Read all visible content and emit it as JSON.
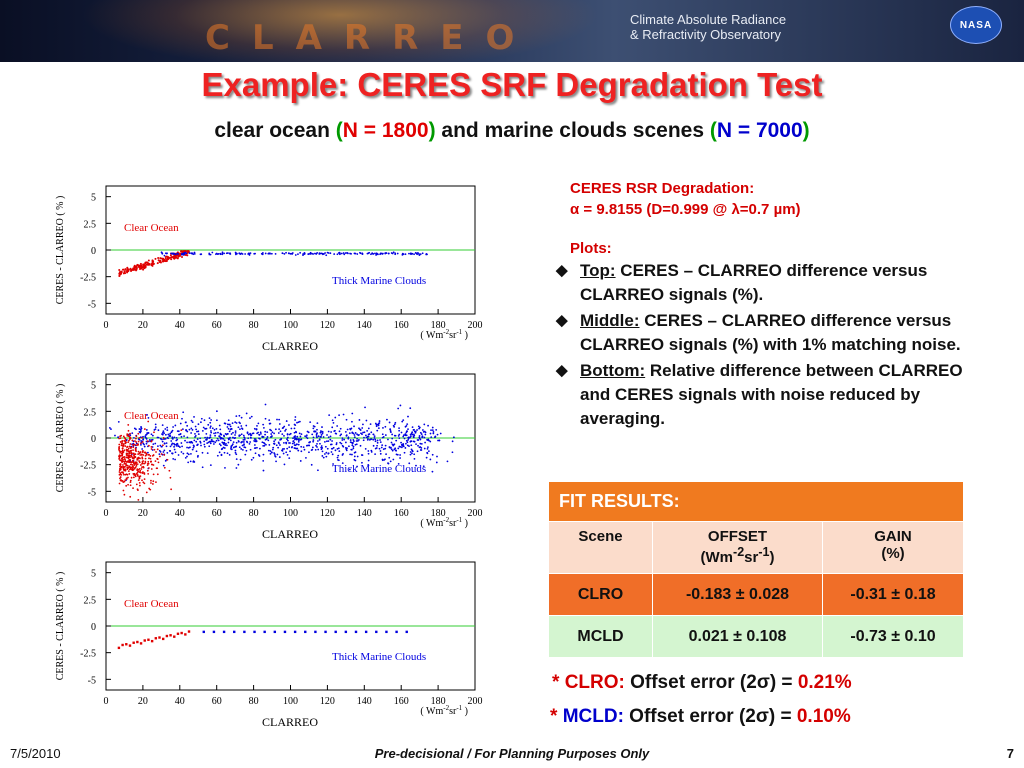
{
  "banner": {
    "logo_text": "CLARREO",
    "observatory_line1": "Climate Absolute Radiance",
    "observatory_line2": "& Refractivity Observatory",
    "agency_logo": "NASA"
  },
  "slide": {
    "title": "Example: CERES SRF Degradation Test",
    "subtitle": {
      "part1": "clear ocean ",
      "paren_open1": "(",
      "n1_label": "N = 1800",
      "paren_close1": ")",
      "part2": " and marine clouds scenes ",
      "paren_open2": "(",
      "n2_label": "N = 7000",
      "paren_close2": ")"
    }
  },
  "info": {
    "rsr_title": "CERES RSR Degradation:",
    "rsr_value": "α = 9.8155 (D=0.999 @ λ=0.7 µm)",
    "plots_label": "Plots:",
    "bullets": [
      {
        "keyword": "Top:",
        "text": " CERES – CLARREO difference versus CLARREO signals (%)."
      },
      {
        "keyword": "Middle:",
        "text": " CERES – CLARREO difference versus CLARREO signals (%) with 1% matching noise."
      },
      {
        "keyword": "Bottom:",
        "text": " Relative difference between CLARREO and CERES signals with noise reduced by averaging."
      }
    ],
    "bullet_icon": "diamond-icon"
  },
  "fit": {
    "header": "FIT RESULTS:",
    "columns": [
      "Scene",
      "OFFSET",
      "GAIN"
    ],
    "offset_unit_pre": "(Wm",
    "offset_unit_sup1": "-2",
    "offset_unit_mid": "sr",
    "offset_unit_sup2": "-1",
    "offset_unit_post": ")",
    "gain_unit": "(%)",
    "rows": [
      {
        "scene": "CLRO",
        "offset": "-0.183 ± 0.028",
        "gain": "-0.31 ± 0.18"
      },
      {
        "scene": "MCLD",
        "offset": "0.021 ± 0.108",
        "gain": "-0.73 ± 0.10"
      }
    ]
  },
  "errors": [
    {
      "star": "*",
      "scene": "CLRO:",
      "text": " Offset error (2σ) = ",
      "value": "0.21%"
    },
    {
      "star": "*",
      "scene": "MCLD:",
      "text": " Offset error (2σ) = ",
      "value": "0.10%"
    }
  ],
  "plots": {
    "ylabel": "CERES - CLARREO ( % )",
    "xlabel": "CLARREO",
    "unit_pre": "( Wm",
    "unit_sup1": "-2",
    "unit_mid": "sr",
    "unit_sup2": "-1",
    "unit_post": " )",
    "y_ticks": [
      "5",
      "2.5",
      "0",
      "-2.5",
      "-5"
    ],
    "x_ticks": [
      "0",
      "20",
      "40",
      "60",
      "80",
      "100",
      "120",
      "140",
      "160",
      "180",
      "200"
    ],
    "label_clear": "Clear Ocean",
    "label_cloud": "Thick Marine Clouds",
    "xlim": [
      0,
      200
    ],
    "ylim": [
      -6,
      6
    ],
    "colors": {
      "clear": "#e00000",
      "cloud": "#0000e0",
      "zero_line": "#33cc33"
    }
  },
  "footer": {
    "date": "7/5/2010",
    "note": "Pre-decisional / For Planning Purposes Only",
    "page": "7"
  }
}
